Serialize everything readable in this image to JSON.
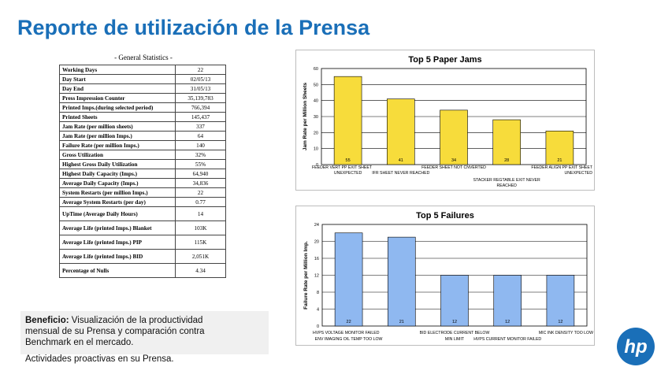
{
  "slide": {
    "title": "Reporte de utilización de la Prensa"
  },
  "stats": {
    "title": "- General Statistics -",
    "rows": [
      {
        "label": "Working Days",
        "value": "22"
      },
      {
        "label": "Day Start",
        "value": "02/05/13"
      },
      {
        "label": "Day End",
        "value": "31/05/13"
      },
      {
        "label": "Press Impression Counter",
        "value": "35,139,783"
      },
      {
        "label": "Printed Imps.(during selected period)",
        "value": "766,394"
      },
      {
        "label": "Printed Sheets",
        "value": "145,437"
      },
      {
        "label": "Jam Rate (per million sheets)",
        "value": "337"
      },
      {
        "label": "Jam Rate (per million Imps.)",
        "value": "64"
      },
      {
        "label": "Failure Rate (per million Imps.)",
        "value": "140"
      },
      {
        "label": "Gross Utilization",
        "value": "32%"
      },
      {
        "label": "Highest Gross Daily Utilization",
        "value": "55%"
      },
      {
        "label": "Highest Daily Capacity (Imps.)",
        "value": "64,940"
      },
      {
        "label": "Average Daily Capacity (Imps.)",
        "value": "34,836"
      },
      {
        "label": "System Restarts (per million Imps.)",
        "value": "22"
      },
      {
        "label": "Average System Restarts (per day)",
        "value": "0.77"
      },
      {
        "label": "UpTime (Average Daily Hours)",
        "value": "14"
      },
      {
        "label": "Average Life (printed Imps.) Blanket",
        "value": "103K"
      },
      {
        "label": "Average Life (printed Imps.) PIP",
        "value": "115K"
      },
      {
        "label": "Average Life (printed Imps.) BID",
        "value": "2,051K"
      },
      {
        "label": "Percentage of Nulls",
        "value": "4.34"
      }
    ]
  },
  "chart_data": [
    {
      "type": "bar",
      "title": "Top 5 Paper Jams",
      "ylabel": "Jam Rate per Million Sheets",
      "xlabel": "",
      "ylim": [
        0,
        60
      ],
      "yticks": [
        0,
        10,
        20,
        30,
        40,
        50,
        60
      ],
      "grid": true,
      "bar_color": "#f7dc3b",
      "values": [
        55,
        41,
        34,
        28,
        21
      ],
      "data_labels": [
        "55",
        "41",
        "34",
        "28",
        "21"
      ],
      "x_labels_row1": [
        "FEEDER VERT PP EXIT SHEET",
        "FEEDER SHEET NOT CNVERTED",
        "FEEDER ALIGN PP EXIT SHEET"
      ],
      "x_labels_row2": [
        "UNEXPECTED",
        "IFR SHEET NEVER REACHED",
        "UNEXPECTED"
      ],
      "x_labels_row3": [
        "STACKER REGTABLE EXIT NEVER"
      ],
      "x_labels_row4": [
        "REACHED"
      ]
    },
    {
      "type": "bar",
      "title": "Top 5 Failures",
      "ylabel": "Failure Rate per Million Imp.",
      "xlabel": "",
      "ylim": [
        0,
        24
      ],
      "yticks": [
        0,
        4,
        8,
        12,
        16,
        20,
        24
      ],
      "grid": true,
      "bar_color": "#8fb8f0",
      "values": [
        22,
        21,
        12,
        12,
        12
      ],
      "data_labels": [
        "22",
        "21",
        "12",
        "12",
        "12"
      ],
      "x_labels_row1": [
        "HVPS VOLTAGE MONITOR FAILED",
        "BID ELECTRODE CURRENT BELOW",
        "MIC INK DENSITY TOO LOW"
      ],
      "x_labels_row2": [
        "ENV IMAGING OIL TEMP TOO LOW",
        "MIN LIMIT",
        "HVPS CURRENT MONITOR FAILED"
      ]
    }
  ],
  "beneficio": {
    "label": "Beneficio:",
    "text": "Visualización de la productividad mensual de su Prensa y comparación contra Benchmark en el mercado.",
    "extra": "Actividades proactivas en su Prensa."
  },
  "logo": {
    "text": "hp",
    "color": "#1a6fb8"
  }
}
